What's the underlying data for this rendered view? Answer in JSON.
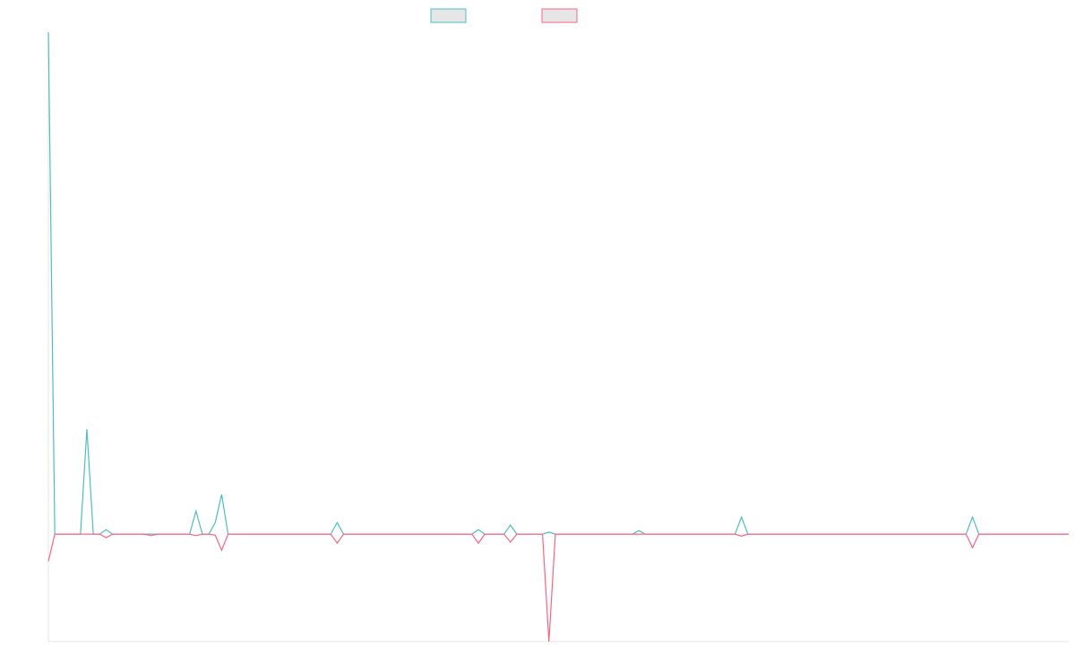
{
  "chart_data": {
    "type": "line",
    "ylim": [
      -21.4,
      100
    ],
    "legend": "top",
    "series": [
      {
        "color": "#4bc0c0",
        "values": [
          100,
          0,
          0,
          0,
          0,
          0,
          20.9,
          0,
          0,
          0.9,
          0,
          0,
          0,
          0,
          0,
          0,
          0,
          0,
          0,
          0,
          0,
          0,
          0,
          4.6,
          0,
          0,
          2.3,
          7.9,
          0,
          0,
          0,
          0,
          0,
          0,
          0,
          0,
          0,
          0,
          0,
          0,
          0,
          0,
          0,
          0,
          0,
          2.3,
          0,
          0,
          0,
          0,
          0,
          0,
          0,
          0,
          0,
          0,
          0,
          0,
          0,
          0,
          0,
          0,
          0,
          0,
          0,
          0,
          0,
          0.9,
          0,
          0,
          0,
          0,
          1.8,
          0,
          0,
          0,
          0,
          0,
          0.4,
          0,
          0,
          0,
          0,
          0,
          0,
          0,
          0,
          0,
          0,
          0,
          0,
          0,
          0.7,
          0,
          0,
          0,
          0,
          0,
          0,
          0,
          0,
          0,
          0,
          0,
          0,
          0,
          0,
          0,
          3.4,
          0,
          0,
          0,
          0,
          0,
          0,
          0,
          0,
          0,
          0,
          0,
          0,
          0,
          0,
          0,
          0,
          0,
          0,
          0,
          0,
          0,
          0,
          0,
          0,
          0,
          0,
          0,
          0,
          0,
          0,
          0,
          0,
          0,
          0,
          0,
          3.4,
          0,
          0,
          0,
          0,
          0,
          0,
          0,
          0,
          0,
          0,
          0,
          0,
          0,
          0,
          0
        ]
      },
      {
        "color": "#ff6384",
        "values": [
          -5.4,
          0,
          0,
          0,
          0,
          0,
          0,
          0,
          0,
          -0.7,
          0,
          0,
          0,
          0,
          0,
          0,
          -0.3,
          0,
          0,
          0,
          0,
          0,
          0,
          -0.3,
          0,
          0,
          -0.2,
          -3.2,
          0,
          0,
          0,
          0,
          0,
          0,
          0,
          0,
          0,
          0,
          0,
          0,
          0,
          0,
          0,
          0,
          0,
          -1.8,
          0,
          0,
          0,
          0,
          0,
          0,
          0,
          0,
          0,
          0,
          0,
          0,
          0,
          0,
          0,
          0,
          0,
          0,
          0,
          0,
          0,
          -1.8,
          0,
          0,
          0,
          0,
          -1.6,
          0,
          0,
          0,
          0,
          0,
          -21.4,
          0,
          0,
          0,
          0,
          0,
          0,
          0,
          0,
          0,
          0,
          0,
          0,
          0,
          0,
          0,
          0,
          0,
          0,
          0,
          0,
          0,
          0,
          0,
          0,
          0,
          0,
          0,
          0,
          0,
          -0.4,
          0,
          0,
          0,
          0,
          0,
          0,
          0,
          0,
          0,
          0,
          0,
          0,
          0,
          0,
          0,
          0,
          0,
          0,
          0,
          0,
          0,
          0,
          0,
          0,
          0,
          0,
          0,
          0,
          0,
          0,
          0,
          0,
          0,
          0,
          0,
          -2.7,
          0,
          0,
          0,
          0,
          0,
          0,
          0,
          0,
          0,
          0,
          0,
          0,
          0,
          0,
          0
        ]
      }
    ]
  }
}
